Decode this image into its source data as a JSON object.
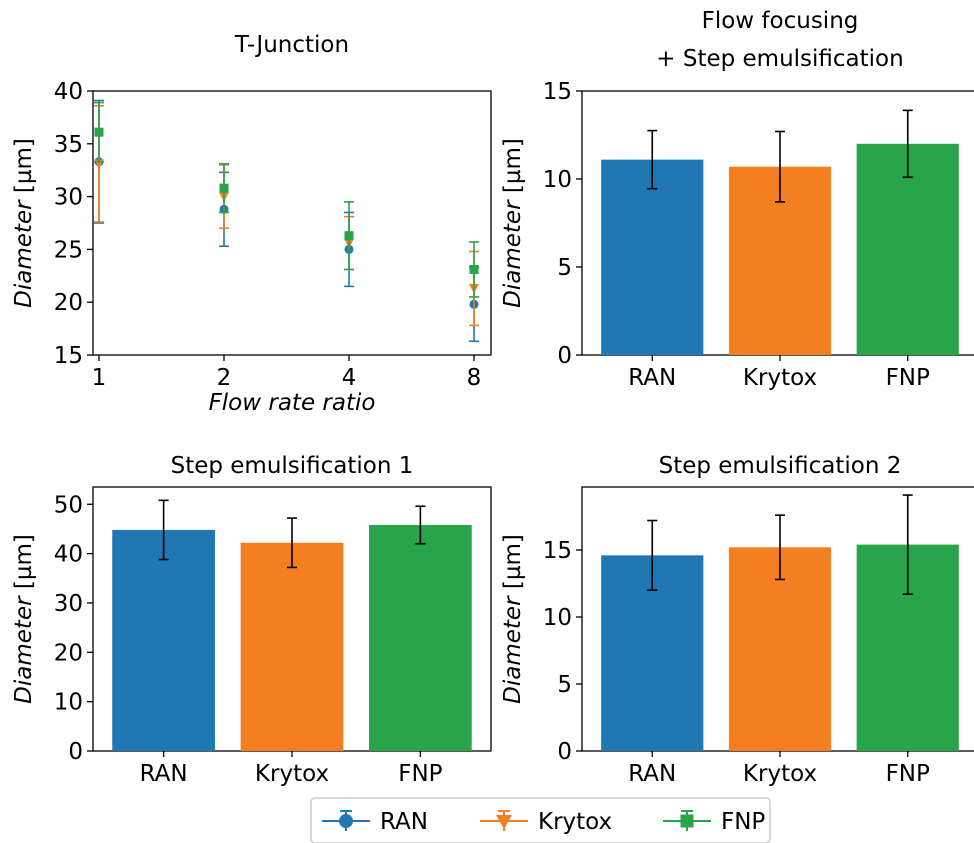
{
  "colors": {
    "RAN": "#1f77b4",
    "Krytox": "#f47f20",
    "FNP": "#2aa44a",
    "axis": "#000000",
    "errorbar": "#000000"
  },
  "legend": {
    "entries": [
      {
        "label": "RAN",
        "marker": "circle",
        "color": "#1f77b4"
      },
      {
        "label": "Krytox",
        "marker": "triangle-down",
        "color": "#f47f20"
      },
      {
        "label": "FNP",
        "marker": "square",
        "color": "#2aa44a"
      }
    ],
    "placement": "bottom-center"
  },
  "chart_data": [
    {
      "type": "scatter",
      "title": "T-Junction",
      "xlabel": "Flow rate ratio",
      "ylabel_italic": "Diameter",
      "ylabel_unit": " [µm]",
      "x_scale": "log2",
      "x_ticks": [
        1,
        2,
        4,
        8
      ],
      "x_ticklabels": [
        "1",
        "2",
        "4",
        "8"
      ],
      "ylim": [
        15,
        40
      ],
      "y_ticks": [
        15,
        20,
        25,
        30,
        35,
        40
      ],
      "y_ticklabels": [
        "15",
        "20",
        "25",
        "30",
        "35",
        "40"
      ],
      "grid": false,
      "series": [
        {
          "name": "RAN",
          "marker": "circle",
          "x": [
            1,
            2,
            4,
            8
          ],
          "y": [
            33.3,
            28.8,
            25.0,
            19.8
          ],
          "err": [
            5.8,
            3.5,
            3.5,
            3.5
          ]
        },
        {
          "name": "Krytox",
          "marker": "triangle-down",
          "x": [
            1,
            2,
            4,
            8
          ],
          "y": [
            33.1,
            30.0,
            25.6,
            21.3
          ],
          "err": [
            5.5,
            3.0,
            2.5,
            3.5
          ]
        },
        {
          "name": "FNP",
          "marker": "square",
          "x": [
            1,
            2,
            4,
            8
          ],
          "y": [
            36.1,
            30.8,
            26.3,
            23.1
          ],
          "err": [
            2.8,
            2.3,
            3.2,
            2.6
          ]
        }
      ]
    },
    {
      "type": "bar",
      "title_lines": [
        "Flow focusing",
        "+ Step emulsification"
      ],
      "categories": [
        "RAN",
        "Krytox",
        "FNP"
      ],
      "values": [
        11.1,
        10.7,
        12.0
      ],
      "errors": [
        1.65,
        2.0,
        1.9
      ],
      "ylabel_italic": "Diameter",
      "ylabel_unit": " [µm]",
      "ylim": [
        0,
        15
      ],
      "y_ticks": [
        0,
        5,
        10,
        15
      ],
      "y_ticklabels": [
        "0",
        "5",
        "10",
        "15"
      ]
    },
    {
      "type": "bar",
      "title": "Step emulsification 1",
      "categories": [
        "RAN",
        "Krytox",
        "FNP"
      ],
      "values": [
        44.8,
        42.2,
        45.8
      ],
      "errors": [
        6.0,
        5.0,
        3.8
      ],
      "ylabel_italic": "Diameter",
      "ylabel_unit": " [µm]",
      "ylim": [
        0,
        53.5
      ],
      "y_ticks": [
        0,
        10,
        20,
        30,
        40,
        50
      ],
      "y_ticklabels": [
        "0",
        "10",
        "20",
        "30",
        "40",
        "50"
      ]
    },
    {
      "type": "bar",
      "title": "Step emulsification 2",
      "categories": [
        "RAN",
        "Krytox",
        "FNP"
      ],
      "values": [
        14.6,
        15.2,
        15.4
      ],
      "errors": [
        2.6,
        2.4,
        3.7
      ],
      "ylabel_italic": "Diameter",
      "ylabel_unit": " [µm]",
      "ylim": [
        0,
        19.7
      ],
      "y_ticks": [
        0,
        5,
        10,
        15
      ],
      "y_ticklabels": [
        "0",
        "5",
        "10",
        "15"
      ]
    }
  ]
}
